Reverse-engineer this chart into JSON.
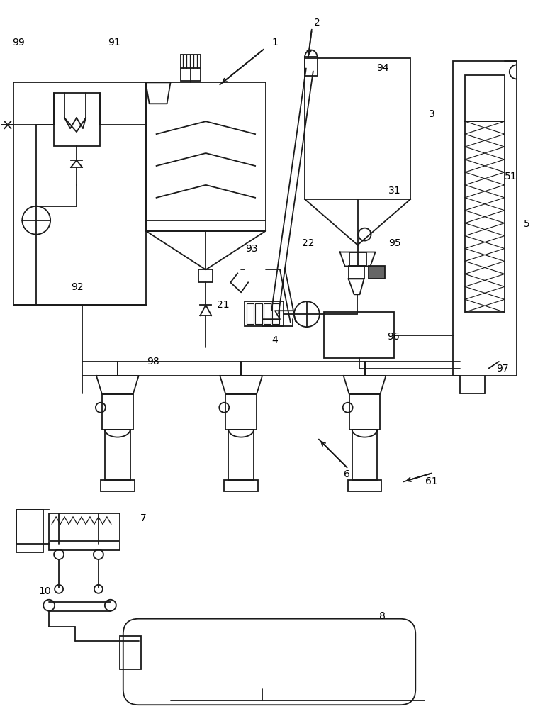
{
  "bg_color": "#ffffff",
  "lc": "#1a1a1a",
  "lw": 1.3,
  "figsize": [
    7.76,
    10.0
  ],
  "dpi": 100
}
